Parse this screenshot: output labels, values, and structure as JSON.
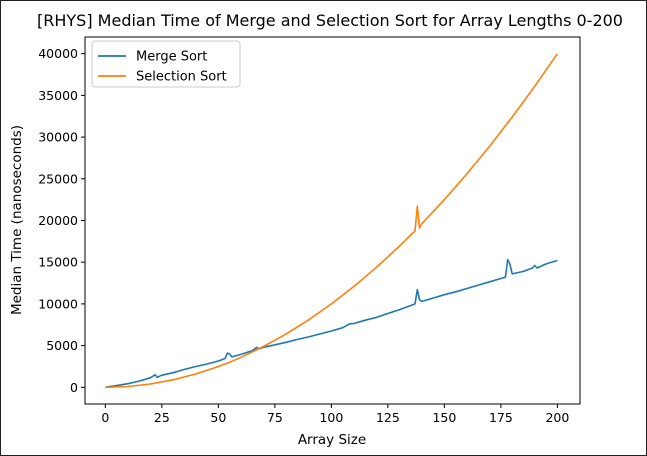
{
  "chart_data": {
    "type": "line",
    "title": "[RHYS] Median Time of Merge and Selection Sort for Array Lengths 0-200",
    "xlabel": "Array Size",
    "ylabel": "Median Time (nanoseconds)",
    "xlim": [
      -9,
      210
    ],
    "ylim": [
      -2000,
      42000
    ],
    "xticks": [
      0,
      25,
      50,
      75,
      100,
      125,
      150,
      175,
      200
    ],
    "yticks": [
      0,
      5000,
      10000,
      15000,
      20000,
      25000,
      30000,
      35000,
      40000
    ],
    "grid": false,
    "legend_position": "top-left",
    "series": [
      {
        "name": "Merge Sort",
        "color": "#1f77b4",
        "points": [
          [
            0,
            0
          ],
          [
            5,
            200
          ],
          [
            10,
            430
          ],
          [
            15,
            750
          ],
          [
            20,
            1150
          ],
          [
            22,
            1500
          ],
          [
            23,
            1200
          ],
          [
            25,
            1450
          ],
          [
            30,
            1750
          ],
          [
            35,
            2150
          ],
          [
            40,
            2500
          ],
          [
            45,
            2800
          ],
          [
            50,
            3150
          ],
          [
            53,
            3450
          ],
          [
            54,
            4100
          ],
          [
            55,
            4000
          ],
          [
            56,
            3650
          ],
          [
            60,
            3950
          ],
          [
            65,
            4400
          ],
          [
            67,
            4800
          ],
          [
            68,
            4600
          ],
          [
            70,
            4800
          ],
          [
            75,
            5100
          ],
          [
            80,
            5400
          ],
          [
            85,
            5750
          ],
          [
            90,
            6050
          ],
          [
            95,
            6400
          ],
          [
            100,
            6750
          ],
          [
            105,
            7150
          ],
          [
            108,
            7600
          ],
          [
            110,
            7650
          ],
          [
            115,
            8050
          ],
          [
            120,
            8400
          ],
          [
            125,
            8850
          ],
          [
            130,
            9300
          ],
          [
            135,
            9800
          ],
          [
            137,
            10000
          ],
          [
            138,
            11700
          ],
          [
            139,
            10500
          ],
          [
            140,
            10300
          ],
          [
            145,
            10700
          ],
          [
            150,
            11100
          ],
          [
            155,
            11450
          ],
          [
            160,
            11850
          ],
          [
            165,
            12250
          ],
          [
            170,
            12650
          ],
          [
            175,
            13050
          ],
          [
            177,
            13200
          ],
          [
            178,
            15300
          ],
          [
            179,
            14800
          ],
          [
            180,
            13600
          ],
          [
            185,
            13900
          ],
          [
            189,
            14300
          ],
          [
            190,
            14600
          ],
          [
            191,
            14300
          ],
          [
            195,
            14800
          ],
          [
            200,
            15200
          ]
        ]
      },
      {
        "name": "Selection Sort",
        "color": "#ff7f0e",
        "points": [
          [
            0,
            0
          ],
          [
            10,
            100
          ],
          [
            20,
            400
          ],
          [
            30,
            900
          ],
          [
            40,
            1600
          ],
          [
            50,
            2500
          ],
          [
            55,
            3000
          ],
          [
            60,
            3600
          ],
          [
            65,
            4250
          ],
          [
            70,
            4900
          ],
          [
            75,
            5650
          ],
          [
            80,
            6400
          ],
          [
            90,
            8100
          ],
          [
            100,
            10000
          ],
          [
            110,
            12100
          ],
          [
            120,
            14400
          ],
          [
            130,
            16900
          ],
          [
            136,
            18500
          ],
          [
            137,
            18700
          ],
          [
            138,
            21700
          ],
          [
            139,
            19100
          ],
          [
            140,
            19600
          ],
          [
            150,
            22500
          ],
          [
            160,
            25600
          ],
          [
            170,
            28900
          ],
          [
            180,
            32400
          ],
          [
            190,
            36100
          ],
          [
            200,
            40000
          ]
        ]
      }
    ]
  }
}
